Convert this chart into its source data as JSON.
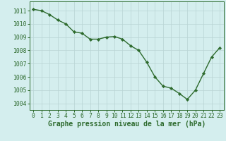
{
  "x": [
    0,
    1,
    2,
    3,
    4,
    5,
    6,
    7,
    8,
    9,
    10,
    11,
    12,
    13,
    14,
    15,
    16,
    17,
    18,
    19,
    20,
    21,
    22,
    23
  ],
  "y": [
    1011.1,
    1011.0,
    1010.7,
    1010.3,
    1010.0,
    1009.4,
    1009.3,
    1008.85,
    1008.85,
    1009.0,
    1009.05,
    1008.85,
    1008.35,
    1008.0,
    1007.1,
    1006.0,
    1005.3,
    1005.15,
    1004.75,
    1004.3,
    1005.0,
    1006.25,
    1007.5,
    1008.2
  ],
  "line_color": "#2d6a2d",
  "marker": "D",
  "marker_size": 2.2,
  "line_width": 1.0,
  "bg_color": "#d4eeee",
  "grid_color": "#b8d4d4",
  "ylabel_ticks": [
    1004,
    1005,
    1006,
    1007,
    1008,
    1009,
    1010,
    1011
  ],
  "xlabel_label": "Graphe pression niveau de la mer (hPa)",
  "xlim": [
    -0.5,
    23.5
  ],
  "ylim": [
    1003.5,
    1011.7
  ],
  "xlabel_fontsize": 7.0,
  "tick_fontsize": 5.8,
  "xlabel_color": "#2d6a2d",
  "tick_color": "#2d6a2d",
  "spine_color": "#2d6a2d"
}
